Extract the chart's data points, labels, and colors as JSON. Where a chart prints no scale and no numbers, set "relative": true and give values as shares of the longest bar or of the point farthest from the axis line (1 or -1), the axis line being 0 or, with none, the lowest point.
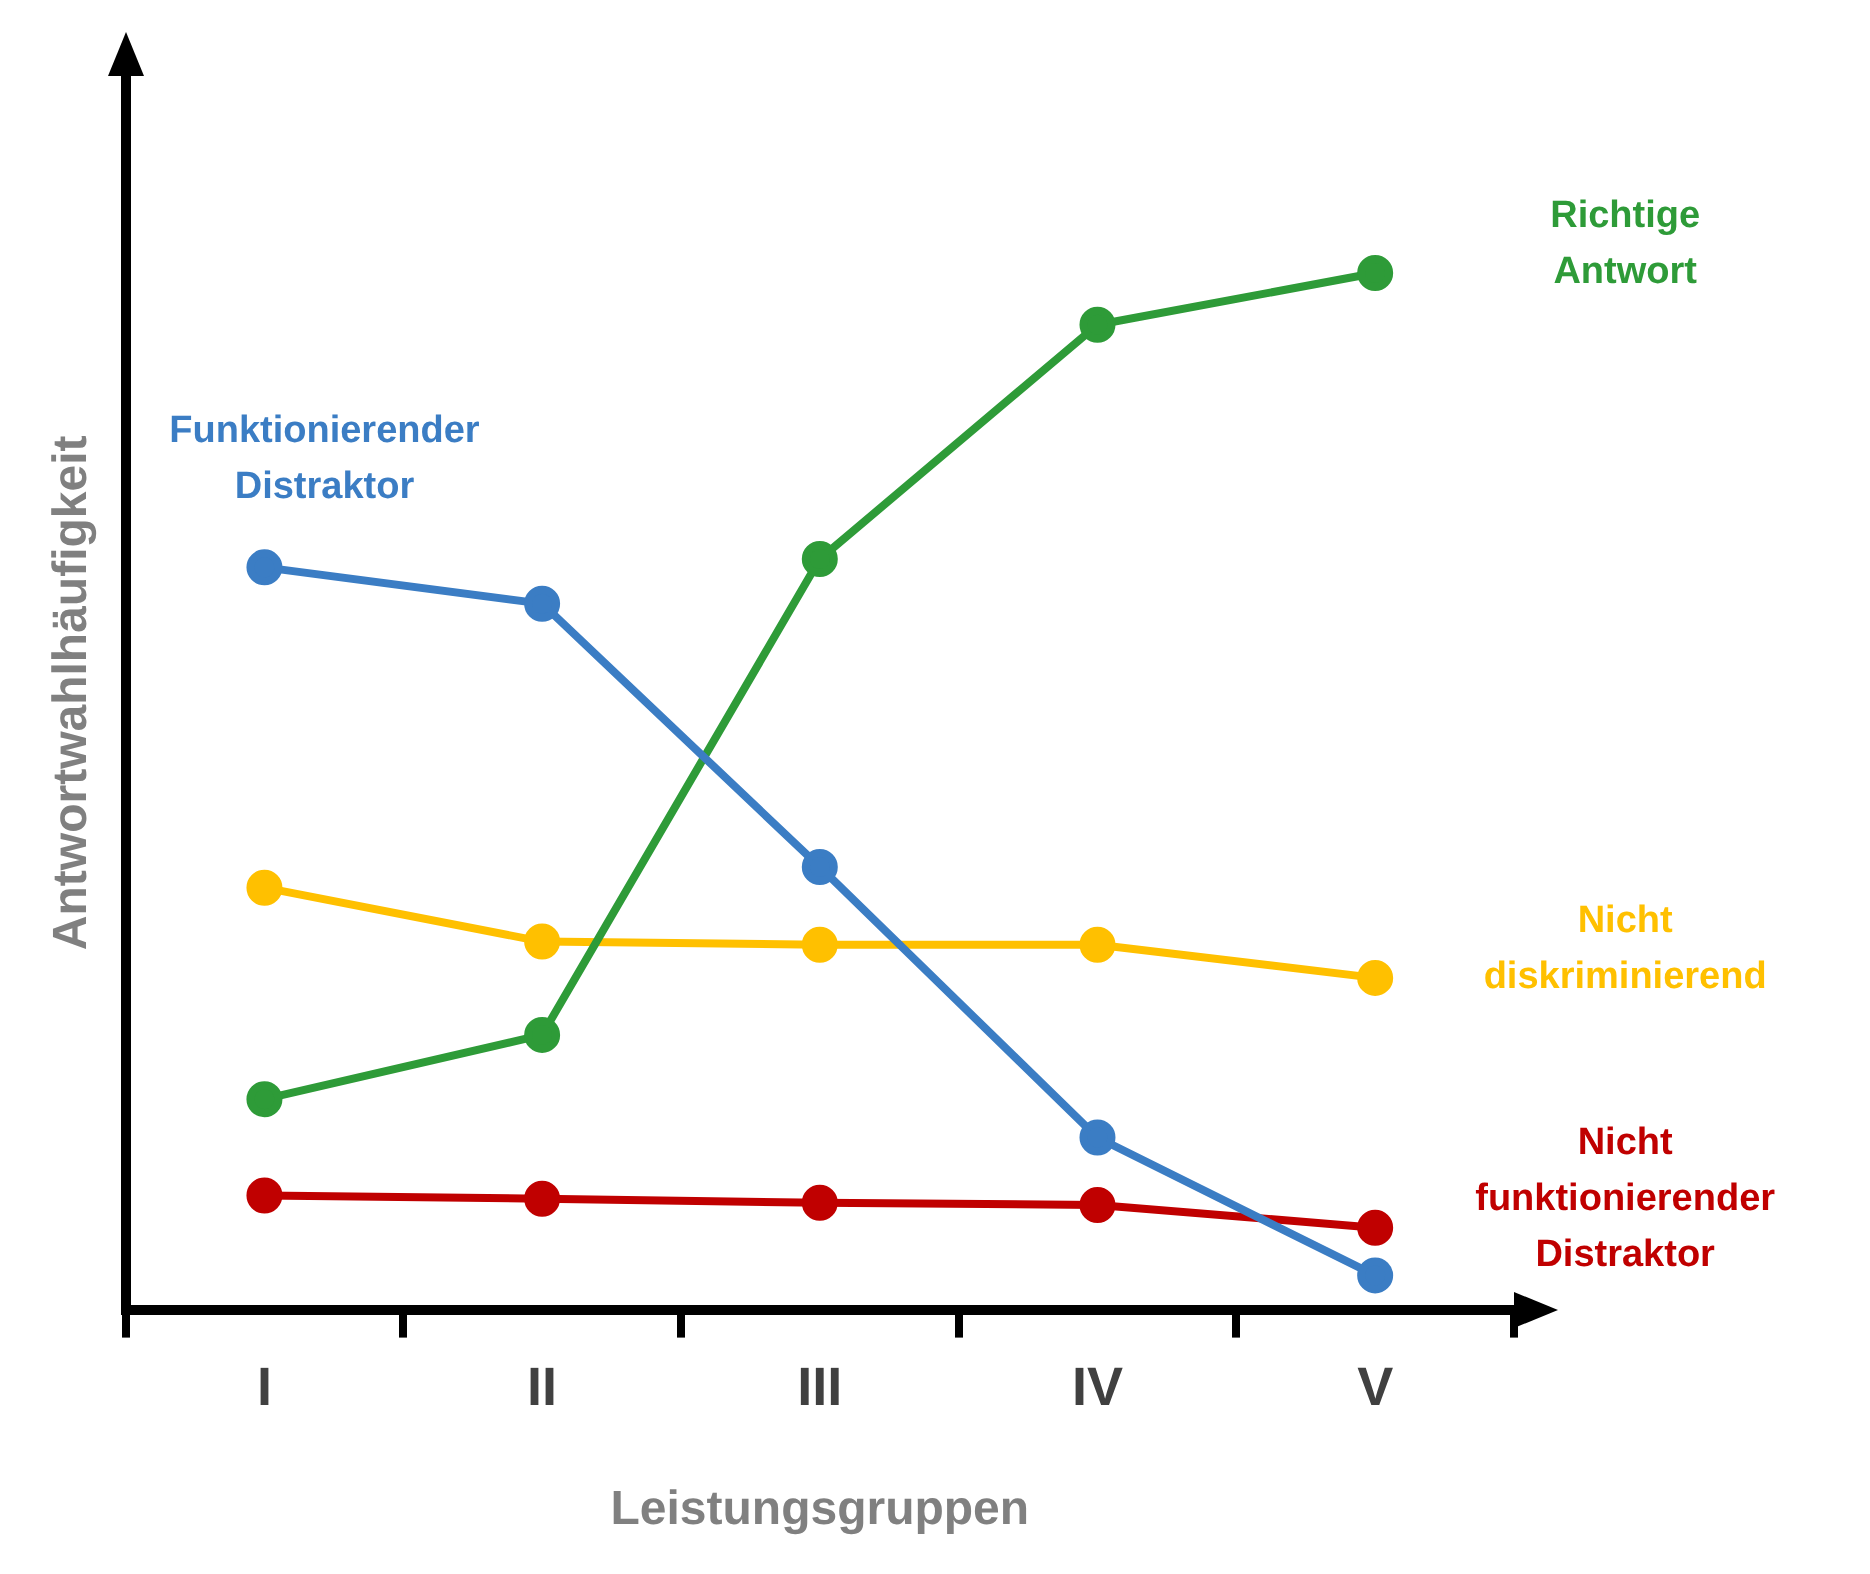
{
  "chart_data": {
    "type": "line",
    "relative": true,
    "xlabel": "Leistungsgruppen",
    "ylabel": "Antwortwahlhäufigkeit",
    "categories": [
      "I",
      "II",
      "III",
      "IV",
      "V"
    ],
    "legend": false,
    "grid": false,
    "marker": "circle",
    "line_style": "solid",
    "series": [
      {
        "name": "Funktionierender Distraktor",
        "color": "#3b7dc4",
        "values": [
          0.716,
          0.681,
          0.427,
          0.166,
          0.033
        ]
      },
      {
        "name": "Richtige Antwort",
        "color": "#2e9b38",
        "values": [
          0.203,
          0.265,
          0.724,
          0.95,
          1
        ]
      },
      {
        "name": "Nicht diskriminierend",
        "color": "#ffc000",
        "values": [
          0.407,
          0.355,
          0.352,
          0.352,
          0.32
        ]
      },
      {
        "name": "Nicht funktionierender Distraktor",
        "color": "#c00000",
        "values": [
          0.11,
          0.107,
          0.103,
          0.101,
          0.079
        ]
      }
    ]
  }
}
